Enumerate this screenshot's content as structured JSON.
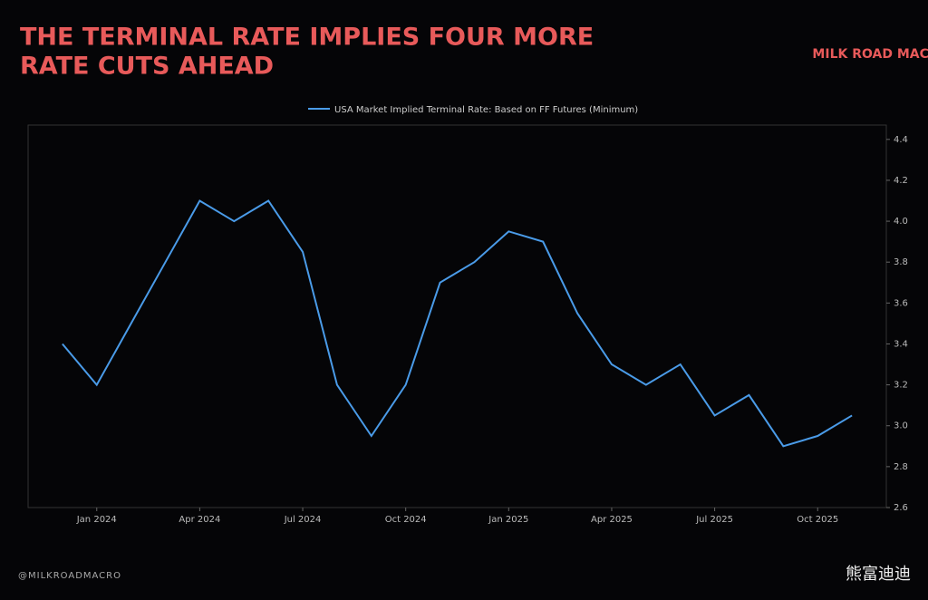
{
  "brand": "MILK ROAD MACRO",
  "footer": "@MILKROADMACRO",
  "watermark": "熊富迪迪",
  "chart_data": {
    "type": "line",
    "title": "THE TERMINAL RATE IMPLIES FOUR MORE RATE CUTS AHEAD",
    "x": [
      "2023-12",
      "2024-01",
      "2024-02",
      "2024-03",
      "2024-04",
      "2024-05",
      "2024-06",
      "2024-07",
      "2024-08",
      "2024-09",
      "2024-10",
      "2024-11",
      "2024-12",
      "2025-01",
      "2025-02",
      "2025-03",
      "2025-04",
      "2025-05",
      "2025-06",
      "2025-07",
      "2025-08",
      "2025-09",
      "2025-10",
      "2025-11"
    ],
    "series": [
      {
        "name": "USA Market Implied Terminal Rate: Based on FF Futures (Minimum)",
        "color": "#4a9be8",
        "values": [
          3.4,
          3.2,
          3.5,
          3.8,
          4.1,
          4.0,
          4.1,
          3.85,
          3.2,
          2.95,
          3.2,
          3.7,
          3.8,
          3.95,
          3.9,
          3.55,
          3.3,
          3.2,
          3.3,
          3.05,
          3.15,
          2.9,
          2.95,
          3.05
        ]
      }
    ],
    "xlim": [
      "2023-11",
      "2025-12"
    ],
    "xticks": [
      {
        "value": "2024-01",
        "label": "Jan 2024"
      },
      {
        "value": "2024-04",
        "label": "Apr 2024"
      },
      {
        "value": "2024-07",
        "label": "Jul 2024"
      },
      {
        "value": "2024-10",
        "label": "Oct 2024"
      },
      {
        "value": "2025-01",
        "label": "Jan 2025"
      },
      {
        "value": "2025-04",
        "label": "Apr 2025"
      },
      {
        "value": "2025-07",
        "label": "Jul 2025"
      },
      {
        "value": "2025-10",
        "label": "Oct 2025"
      }
    ],
    "ylim": [
      2.6,
      4.47
    ],
    "yticks": [
      2.6,
      2.8,
      {
        "value": 3,
        "label": "3.0"
      },
      3.2,
      3.4,
      3.6,
      3.8,
      {
        "value": 4,
        "label": "4.0"
      },
      4.2,
      4.4
    ],
    "legend": "top"
  }
}
